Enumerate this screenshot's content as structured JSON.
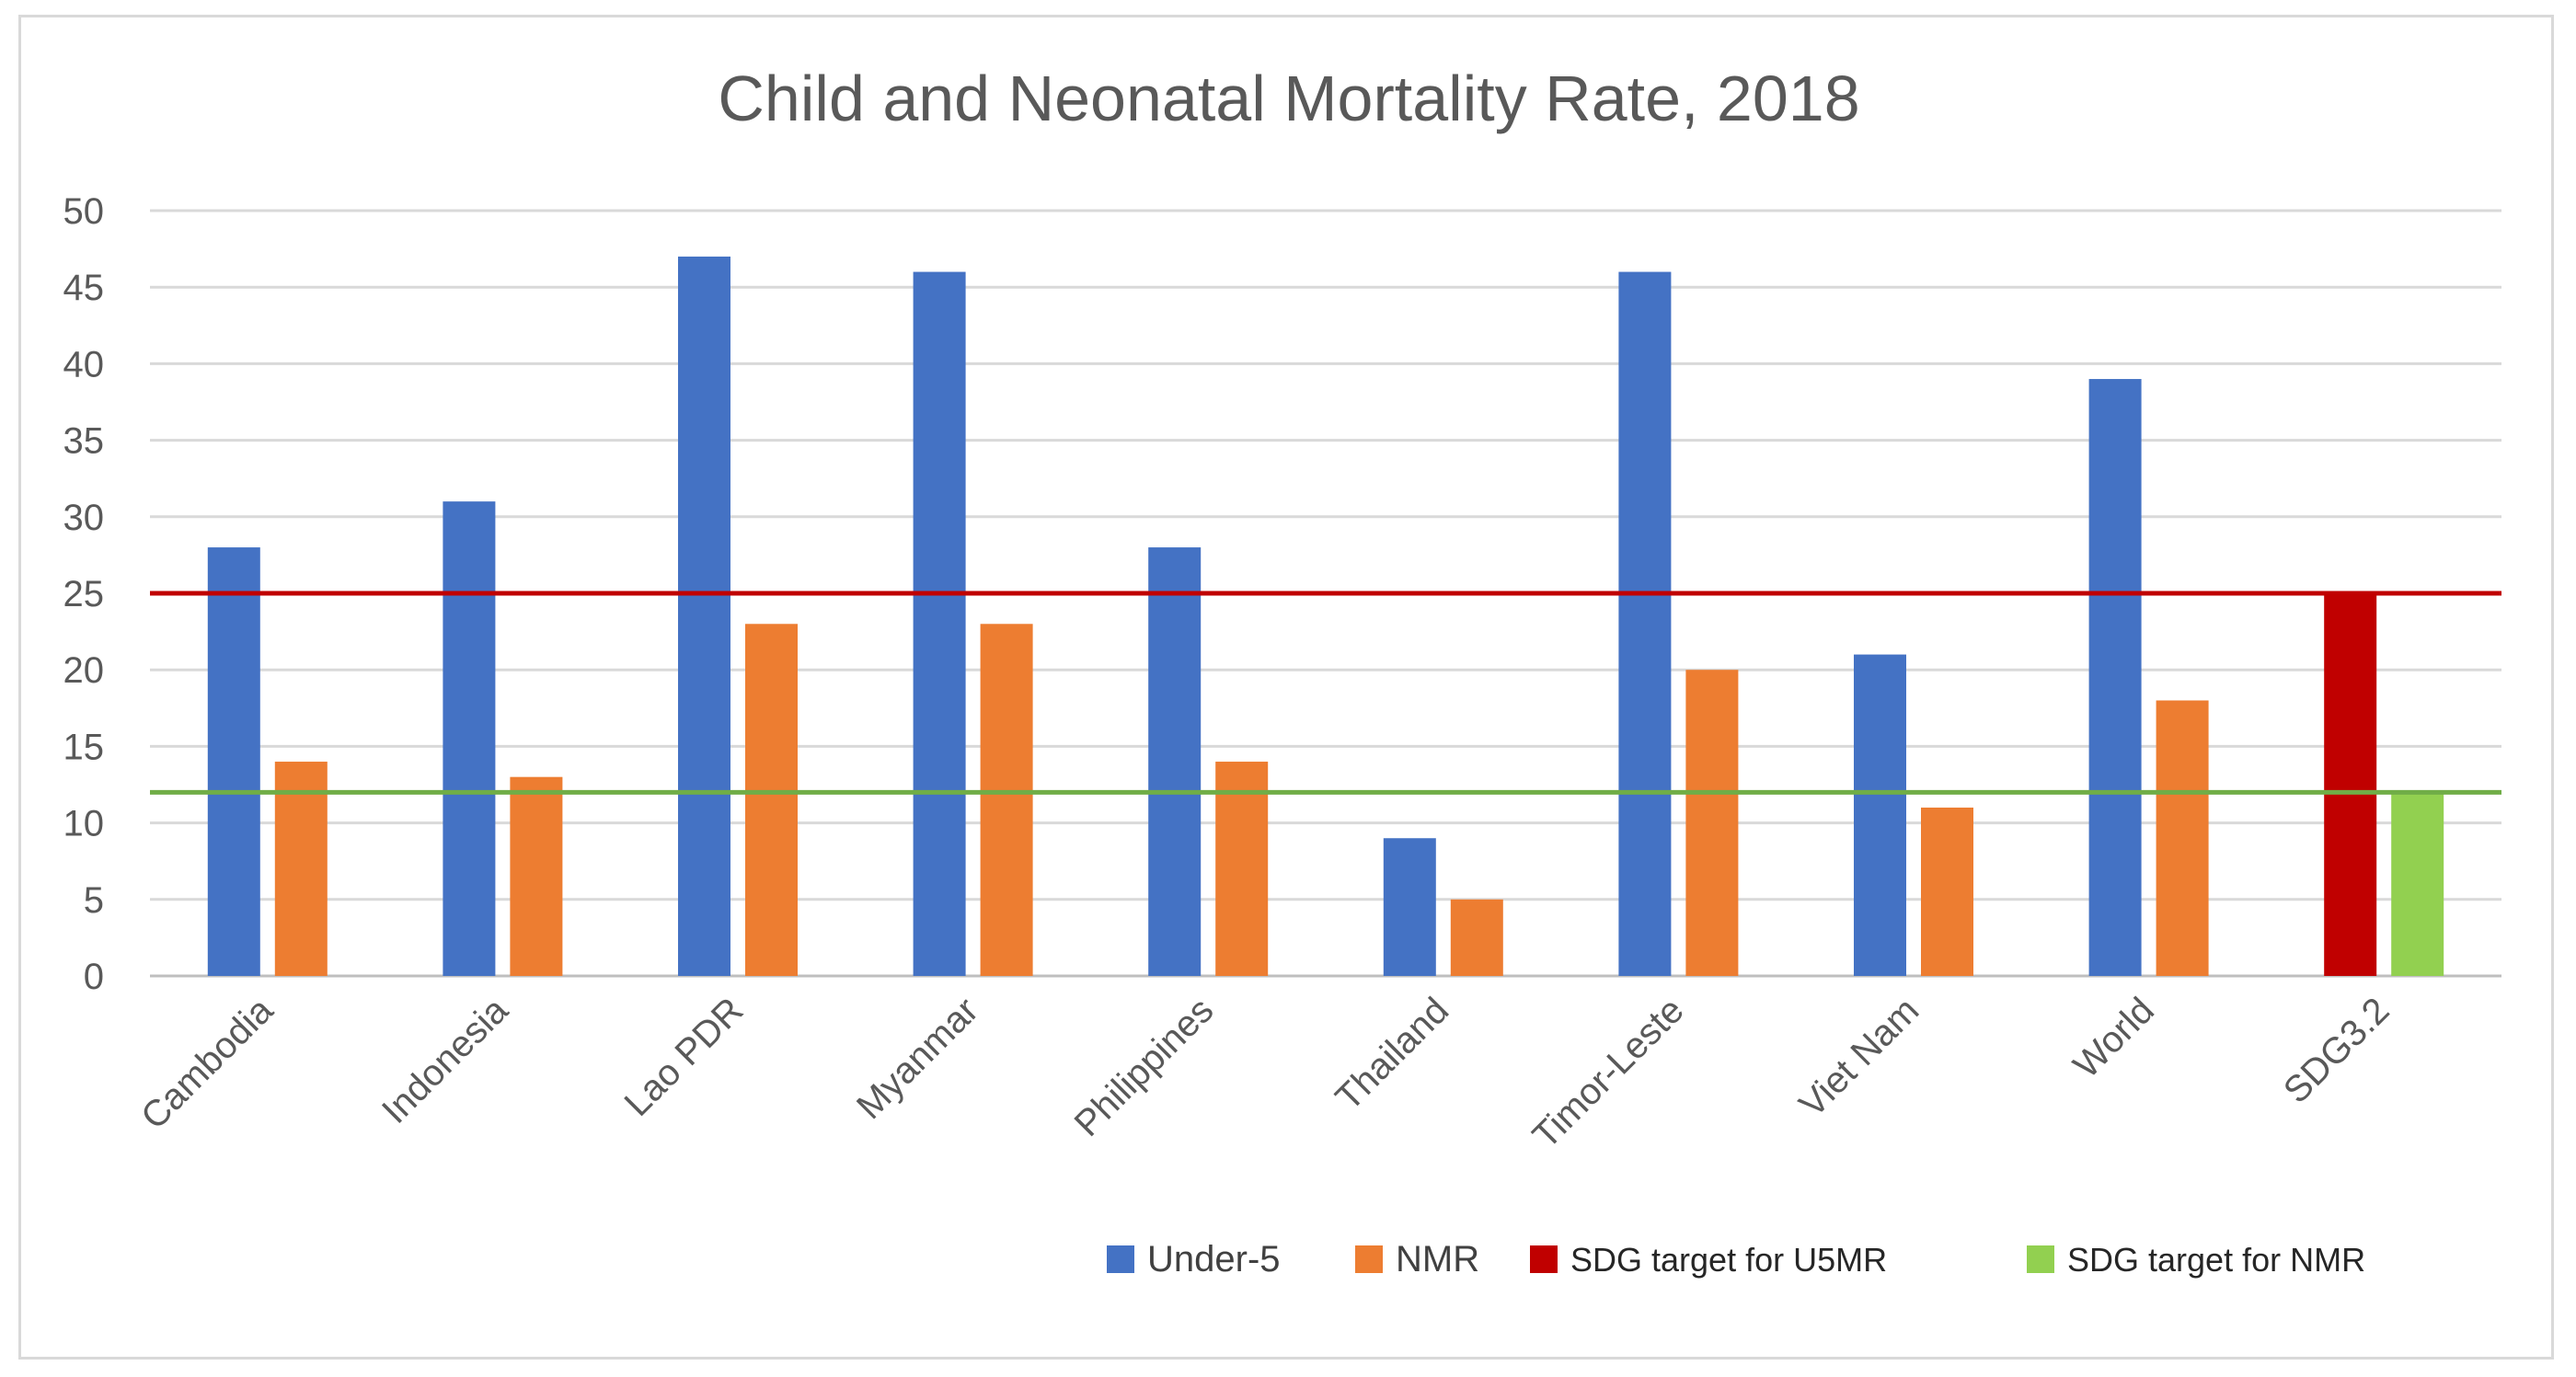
{
  "chart_data": {
    "type": "bar",
    "title": "Child and Neonatal Mortality Rate, 2018",
    "xlabel": "",
    "ylabel": "",
    "ylim": [
      0,
      50
    ],
    "yticks": [
      0,
      5,
      10,
      15,
      20,
      25,
      30,
      35,
      40,
      45,
      50
    ],
    "grid": true,
    "legend_position": "bottom-right",
    "categories": [
      "Cambodia",
      "Indonesia",
      "Lao PDR",
      "Myanmar",
      "Philippines",
      "Thailand",
      "Timor-Leste",
      "Viet Nam",
      "World",
      "SDG3.2"
    ],
    "series": [
      {
        "name": "Under-5",
        "color": "#4472C4",
        "values": [
          28,
          31,
          47,
          46,
          28,
          9,
          46,
          21,
          39,
          25
        ]
      },
      {
        "name": "NMR",
        "color": "#ED7D31",
        "values": [
          14,
          13,
          23,
          23,
          14,
          5,
          20,
          11,
          18,
          12
        ]
      }
    ],
    "highlight_bars": [
      {
        "category": "SDG3.2",
        "series": "Under-5",
        "color": "#C00000"
      },
      {
        "category": "SDG3.2",
        "series": "NMR",
        "color": "#92D050"
      }
    ],
    "reference_lines": [
      {
        "name": "SDG target for U5MR",
        "value": 25,
        "color": "#C00000"
      },
      {
        "name": "SDG target for NMR",
        "value": 12,
        "color": "#70AD47"
      }
    ],
    "legend": [
      {
        "label": "Under-5",
        "color": "#4472C4"
      },
      {
        "label": "NMR",
        "color": "#ED7D31"
      },
      {
        "label": "SDG target for U5MR",
        "color": "#C00000"
      },
      {
        "label": "SDG target for NMR",
        "color": "#92D050"
      }
    ]
  }
}
